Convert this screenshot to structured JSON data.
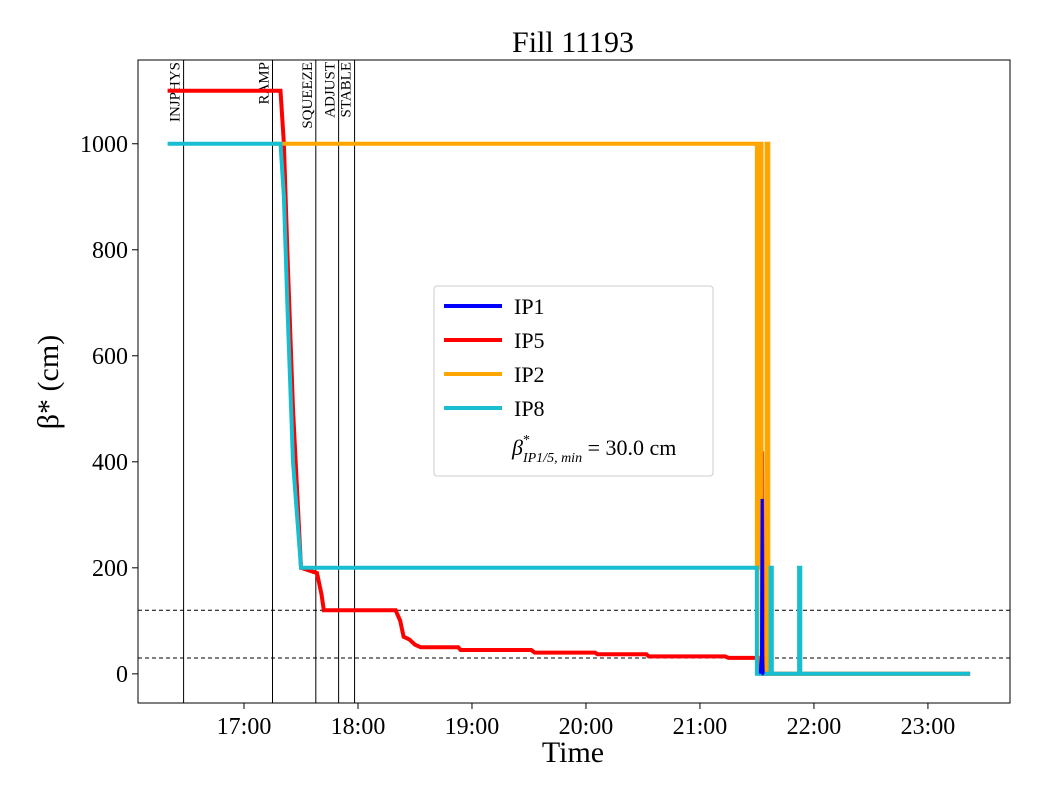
{
  "chart_data": {
    "type": "line",
    "title": "Fill 11193",
    "xlabel": "Time",
    "ylabel": "β* (cm)",
    "x_unit": "hours of day",
    "xlim": [
      16.07,
      23.72
    ],
    "ylim": [
      -55,
      1158
    ],
    "x_ticks": [
      {
        "value": 17,
        "label": "17:00"
      },
      {
        "value": 18,
        "label": "18:00"
      },
      {
        "value": 19,
        "label": "19:00"
      },
      {
        "value": 20,
        "label": "20:00"
      },
      {
        "value": 21,
        "label": "21:00"
      },
      {
        "value": 22,
        "label": "22:00"
      },
      {
        "value": 23,
        "label": "23:00"
      }
    ],
    "y_ticks": [
      0,
      200,
      400,
      600,
      800,
      1000
    ],
    "grid": false,
    "legend_position": "center",
    "phases": [
      {
        "label": "INJPHYS",
        "x": 16.47
      },
      {
        "label": "RAMP",
        "x": 17.25
      },
      {
        "label": "SQUEEZE",
        "x": 17.63
      },
      {
        "label": "ADJUST",
        "x": 17.83
      },
      {
        "label": "STABLE",
        "x": 17.97
      }
    ],
    "reference_lines": [
      {
        "y": 120,
        "style": "dashed"
      },
      {
        "y": 30,
        "style": "dashed"
      }
    ],
    "series": [
      {
        "name": "IP1",
        "color": "#0000ff",
        "x": [
          21.53,
          21.54,
          21.545,
          21.55,
          21.555,
          21.56
        ],
        "y": [
          0,
          30,
          330,
          30,
          0,
          0
        ]
      },
      {
        "name": "IP5",
        "color": "#ff0000",
        "x": [
          16.33,
          17.32,
          17.35,
          17.38,
          17.43,
          17.5,
          17.64,
          17.68,
          17.7,
          17.72,
          17.95,
          18.33,
          18.37,
          18.4,
          18.45,
          18.5,
          18.55,
          18.88,
          18.9,
          19.52,
          19.55,
          20.08,
          20.1,
          20.53,
          20.55,
          21.22,
          21.25,
          21.5,
          21.52,
          21.53,
          21.54,
          21.545,
          21.55,
          21.6,
          23.37
        ],
        "y": [
          1100,
          1100,
          1000,
          800,
          500,
          200,
          190,
          150,
          120,
          120,
          120,
          120,
          100,
          70,
          65,
          55,
          50,
          50,
          45,
          45,
          40,
          40,
          37,
          37,
          33,
          33,
          30,
          30,
          30,
          0,
          0,
          420,
          0,
          0,
          0
        ]
      },
      {
        "name": "IP2",
        "color": "#ffa500",
        "x": [
          17.25,
          21.5,
          21.5,
          21.515,
          21.515,
          21.54,
          21.54,
          21.585,
          21.585,
          21.6,
          21.6,
          23.37
        ],
        "y": [
          1000,
          1000,
          200,
          200,
          1000,
          1000,
          0,
          0,
          1000,
          1000,
          0,
          0
        ]
      },
      {
        "name": "IP8",
        "color": "#17becf",
        "x": [
          16.33,
          17.32,
          17.35,
          17.38,
          17.43,
          17.5,
          21.5,
          21.5,
          21.62,
          21.62,
          21.63,
          21.63,
          21.87,
          21.87,
          21.88,
          21.88,
          23.37
        ],
        "y": [
          1000,
          1000,
          900,
          700,
          400,
          200,
          200,
          0,
          0,
          200,
          200,
          0,
          0,
          200,
          200,
          0,
          0
        ]
      }
    ],
    "legend": {
      "entries": [
        "IP1",
        "IP5",
        "IP2",
        "IP8"
      ],
      "note_main": "β",
      "note_sup": "*",
      "note_sub": "IP1/5, min",
      "note_value": " = 30.0 cm"
    }
  }
}
